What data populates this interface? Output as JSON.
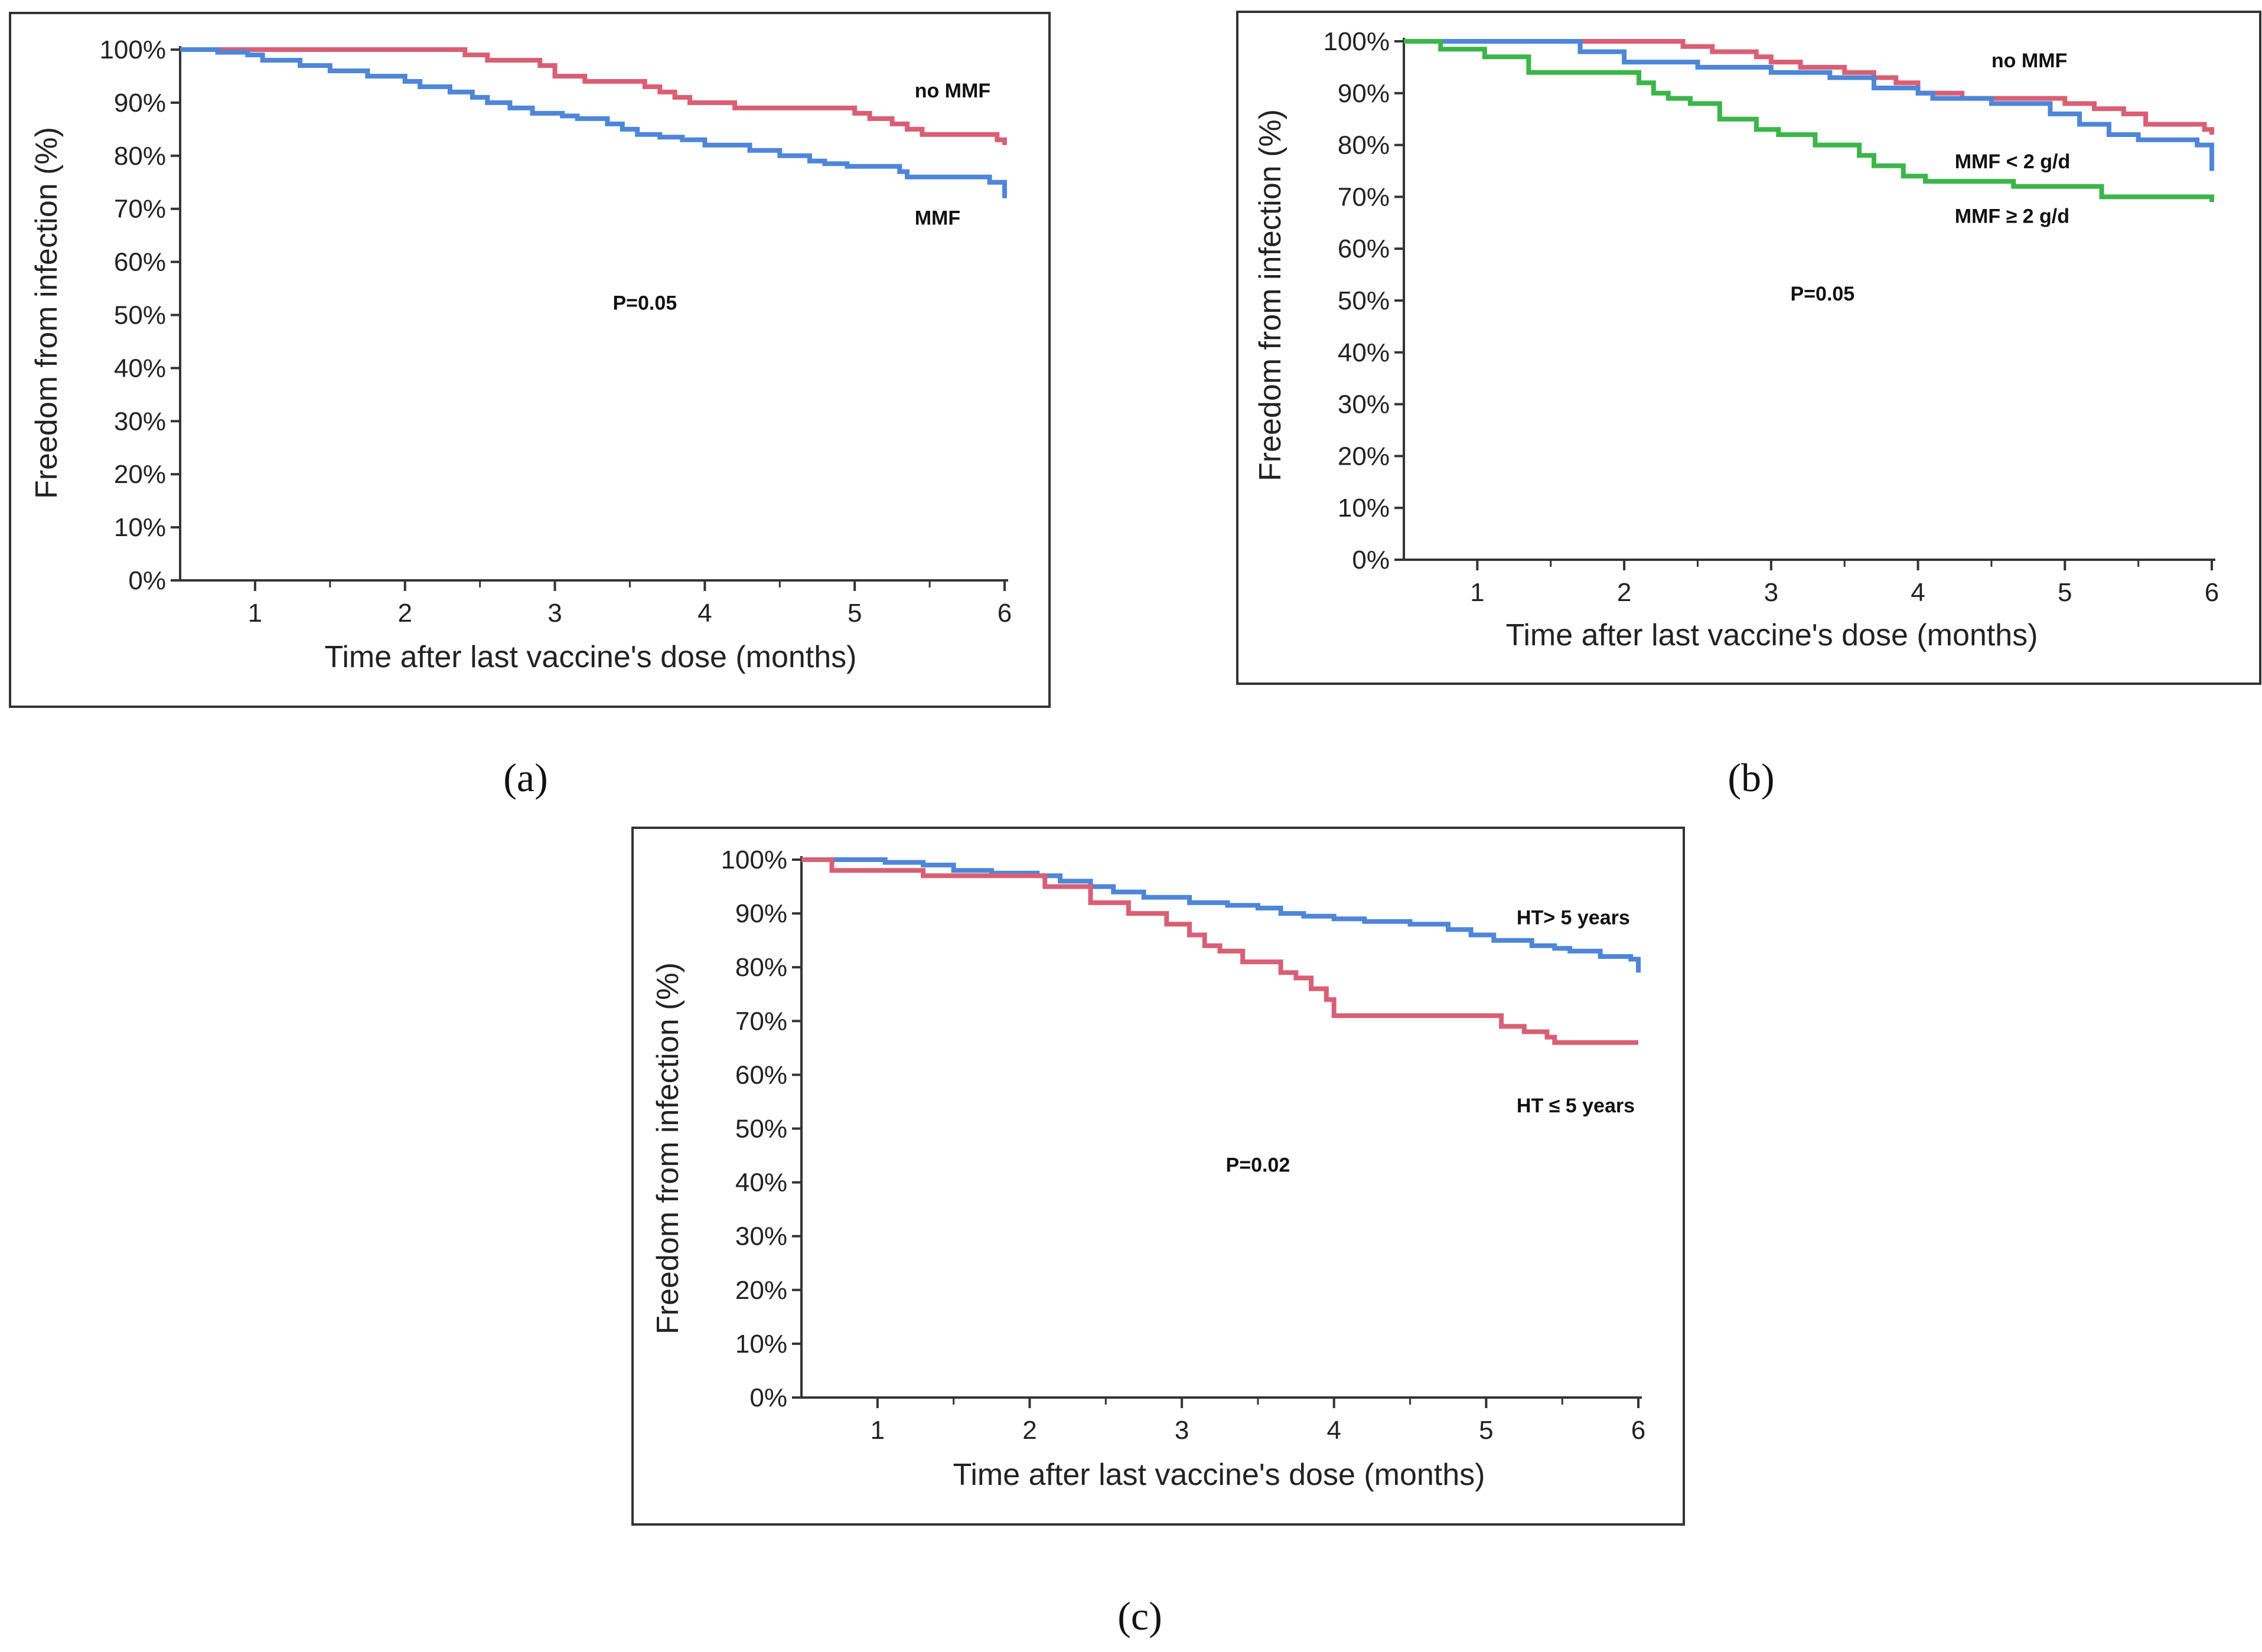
{
  "chart_data": [
    {
      "panel": "a",
      "type": "line",
      "subtype": "kaplan-meier-step",
      "caption": "(a)",
      "xlabel": "Time after last vaccine's dose (months)",
      "ylabel": "Freedom from infection (%)",
      "xlim": [
        0.5,
        6
      ],
      "ylim": [
        0,
        100
      ],
      "x_ticks": [
        1,
        2,
        3,
        4,
        5,
        6
      ],
      "x_tick_labels": [
        "1",
        "2",
        "3",
        "4",
        "5",
        "6"
      ],
      "y_ticks": [
        0,
        10,
        20,
        30,
        40,
        50,
        60,
        70,
        80,
        90,
        100
      ],
      "y_tick_labels": [
        "0%",
        "10%",
        "20%",
        "30%",
        "40%",
        "50%",
        "60%",
        "70%",
        "80%",
        "90%",
        "100%"
      ],
      "annotations": [
        {
          "text": "P=0.05",
          "x": 3.6,
          "y": 51
        }
      ],
      "series": [
        {
          "name": "no MMF",
          "color": "#d95f74",
          "label": {
            "text": "no MMF",
            "x": 5.4,
            "y": 91
          },
          "x": [
            0.5,
            2.3,
            2.4,
            2.55,
            2.9,
            3.0,
            3.2,
            3.6,
            3.7,
            3.8,
            3.9,
            4.2,
            5.0,
            5.1,
            5.25,
            5.35,
            5.45,
            5.5,
            5.95,
            6.0
          ],
          "y": [
            100,
            100,
            99,
            98,
            97,
            95,
            94,
            93,
            92,
            91,
            90,
            89,
            88,
            87,
            86,
            85,
            84,
            84,
            83,
            82
          ]
        },
        {
          "name": "MMF",
          "color": "#4e86d8",
          "label": {
            "text": "MMF",
            "x": 5.4,
            "y": 67
          },
          "x": [
            0.5,
            0.75,
            0.95,
            1.05,
            1.3,
            1.5,
            1.75,
            2.0,
            2.1,
            2.3,
            2.45,
            2.55,
            2.7,
            2.85,
            3.05,
            3.15,
            3.35,
            3.45,
            3.55,
            3.7,
            3.85,
            4.0,
            4.3,
            4.5,
            4.7,
            4.8,
            4.95,
            5.3,
            5.35,
            5.9,
            6.0
          ],
          "y": [
            100,
            99.5,
            99,
            98,
            97,
            96,
            95,
            94,
            93,
            92,
            91,
            90,
            89,
            88,
            87.5,
            87,
            86,
            85,
            84,
            83.5,
            83,
            82,
            81,
            80,
            79,
            78.5,
            78,
            77,
            76,
            75,
            72
          ]
        }
      ]
    },
    {
      "panel": "b",
      "type": "line",
      "subtype": "kaplan-meier-step",
      "caption": "(b)",
      "xlabel": "Time after last vaccine's dose (months)",
      "ylabel": "Freedom from infection (%)",
      "xlim": [
        0.5,
        6
      ],
      "ylim": [
        0,
        100
      ],
      "x_ticks": [
        1,
        2,
        3,
        4,
        5,
        6
      ],
      "x_tick_labels": [
        "1",
        "2",
        "3",
        "4",
        "5",
        "6"
      ],
      "y_ticks": [
        0,
        10,
        20,
        30,
        40,
        50,
        60,
        70,
        80,
        90,
        100
      ],
      "y_tick_labels": [
        "0%",
        "10%",
        "20%",
        "30%",
        "40%",
        "50%",
        "60%",
        "70%",
        "80%",
        "90%",
        "100%"
      ],
      "annotations": [
        {
          "text": "P=0.05",
          "x": 3.35,
          "y": 50
        }
      ],
      "series": [
        {
          "name": "no MMF",
          "color": "#d95f74",
          "label": {
            "text": "no MMF",
            "x": 4.5,
            "y": 95
          },
          "x": [
            0.5,
            2.3,
            2.4,
            2.6,
            2.9,
            3.0,
            3.2,
            3.5,
            3.7,
            3.85,
            4.0,
            4.3,
            5.0,
            5.2,
            5.4,
            5.55,
            5.95,
            6.0
          ],
          "y": [
            100,
            100,
            99,
            98,
            97,
            96,
            95,
            94,
            93,
            92,
            90,
            89,
            88,
            87,
            86,
            84,
            83,
            82
          ],
          "end_x": 6.0
        },
        {
          "name": "MMF < 2 g/d",
          "color": "#4e86d8",
          "label": {
            "text": "MMF < 2 g/d",
            "x": 4.25,
            "y": 75.5
          },
          "x": [
            0.5,
            1.5,
            1.7,
            2.0,
            2.5,
            3.0,
            3.4,
            3.7,
            4.0,
            4.1,
            4.5,
            4.9,
            5.1,
            5.3,
            5.5,
            5.9,
            6.0
          ],
          "y": [
            100,
            100,
            98,
            96,
            95,
            94,
            93,
            91,
            90,
            89,
            88,
            86,
            84,
            82,
            81,
            80,
            75
          ],
          "end_x": 6.0
        },
        {
          "name": "MMF ≥ 2 g/d",
          "color": "#3cb54a",
          "label": {
            "text": "MMF ≥ 2 g/d",
            "x": 4.25,
            "y": 65
          },
          "x": [
            0.5,
            0.75,
            1.05,
            1.35,
            1.95,
            2.1,
            2.2,
            2.3,
            2.45,
            2.65,
            2.9,
            3.05,
            3.3,
            3.6,
            3.7,
            3.9,
            4.05,
            4.65,
            5.25,
            6.0
          ],
          "y": [
            100,
            98.5,
            97,
            94,
            94,
            92,
            90,
            89,
            88,
            85,
            83,
            82,
            80,
            78,
            76,
            74,
            73,
            72,
            70,
            69
          ],
          "end_x": 6.0
        }
      ]
    },
    {
      "panel": "c",
      "type": "line",
      "subtype": "kaplan-meier-step",
      "caption": "(c)",
      "xlabel": "Time after last vaccine's dose (months)",
      "ylabel": "Freedom from infection (%)",
      "xlim": [
        0.5,
        6
      ],
      "ylim": [
        0,
        100
      ],
      "x_ticks": [
        1,
        2,
        3,
        4,
        5,
        6
      ],
      "x_tick_labels": [
        "1",
        "2",
        "3",
        "4",
        "5",
        "6"
      ],
      "y_ticks": [
        0,
        10,
        20,
        30,
        40,
        50,
        60,
        70,
        80,
        90,
        100
      ],
      "y_tick_labels": [
        "0%",
        "10%",
        "20%",
        "30%",
        "40%",
        "50%",
        "60%",
        "70%",
        "80%",
        "90%",
        "100%"
      ],
      "annotations": [
        {
          "text": "P=0.02",
          "x": 3.5,
          "y": 42
        }
      ],
      "series": [
        {
          "name": "HT> 5 years",
          "color": "#4e86d8",
          "label": {
            "text": "HT> 5 years",
            "x": 5.2,
            "y": 88
          },
          "x": [
            0.5,
            1.05,
            1.3,
            1.5,
            1.75,
            2.05,
            2.2,
            2.4,
            2.55,
            2.75,
            3.05,
            3.3,
            3.5,
            3.65,
            3.8,
            4.0,
            4.2,
            4.5,
            4.75,
            4.9,
            5.05,
            5.3,
            5.45,
            5.55,
            5.75,
            5.95,
            6.0
          ],
          "y": [
            100,
            99.5,
            99,
            98,
            97.5,
            97,
            96,
            95,
            94,
            93,
            92,
            91.5,
            91,
            90,
            89.5,
            89,
            88.5,
            88,
            87,
            86,
            85,
            84,
            83.5,
            83,
            82,
            81.5,
            79
          ]
        },
        {
          "name": "HT ≤ 5 years",
          "color": "#d95f74",
          "label": {
            "text": "HT ≤ 5 years",
            "x": 5.2,
            "y": 53
          },
          "x": [
            0.5,
            0.7,
            1.3,
            2.1,
            2.4,
            2.65,
            2.9,
            3.05,
            3.15,
            3.25,
            3.4,
            3.65,
            3.75,
            3.85,
            3.95,
            4.0,
            5.1,
            5.25,
            5.4,
            5.45,
            6.0
          ],
          "y": [
            100,
            98,
            97,
            95,
            92,
            90,
            88,
            86,
            84,
            83,
            81,
            79,
            78,
            76,
            74,
            71,
            69,
            68,
            67,
            66,
            66
          ]
        }
      ]
    }
  ]
}
